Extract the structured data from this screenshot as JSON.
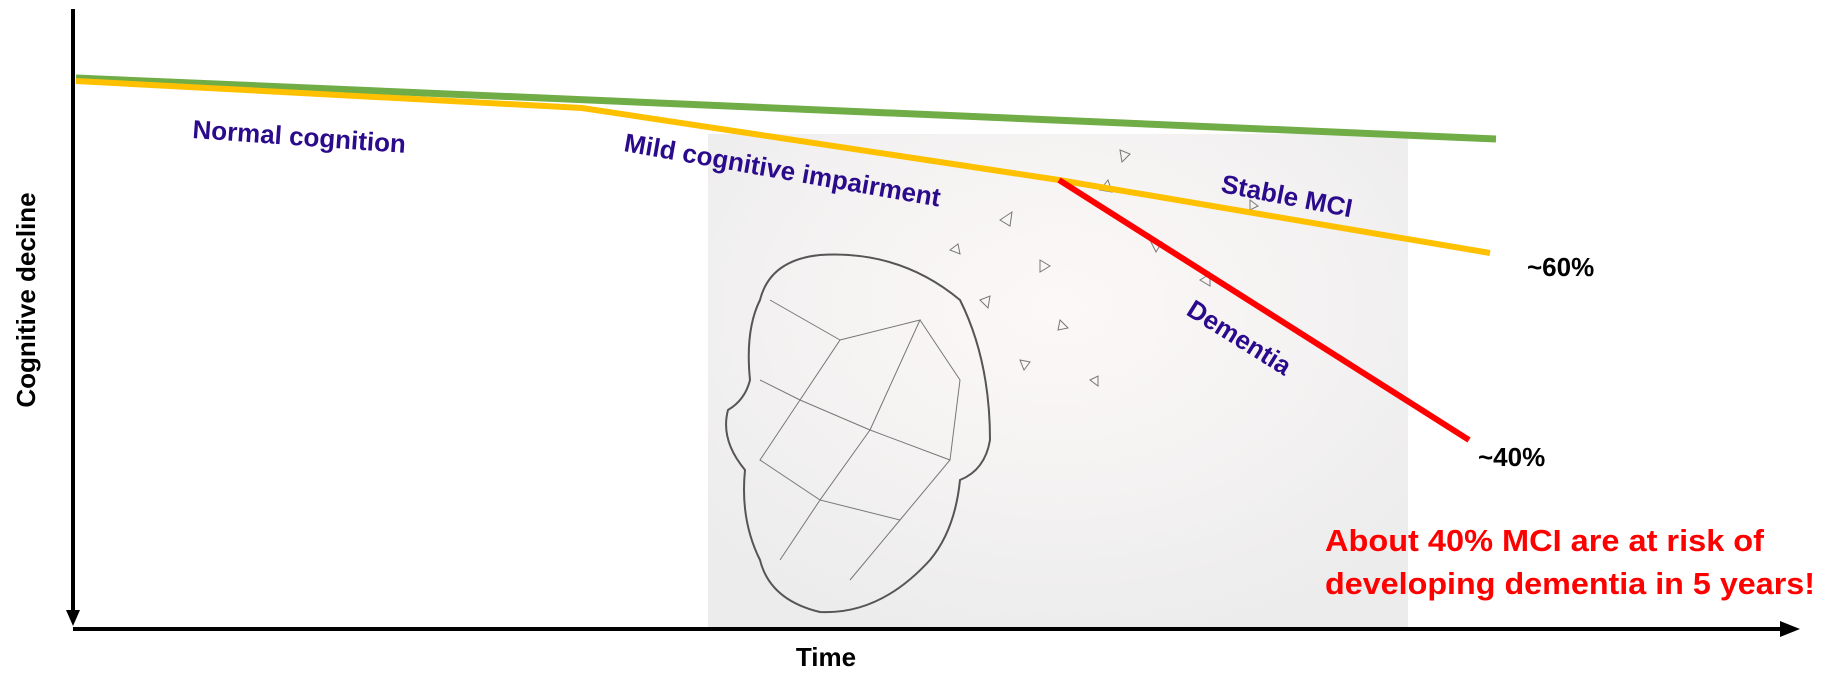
{
  "axes": {
    "y_label": "Cognitive decline",
    "x_label": "Time"
  },
  "stages": {
    "normal": "Normal cognition",
    "mci": "Mild cognitive impairment",
    "stable": "Stable MCI",
    "dementia": "Dementia"
  },
  "outcomes": {
    "stable": "~60%",
    "dementia": "~40%"
  },
  "note": {
    "line1": "About 40% MCI are at risk of",
    "line2": "developing dementia in 5 years!"
  }
}
